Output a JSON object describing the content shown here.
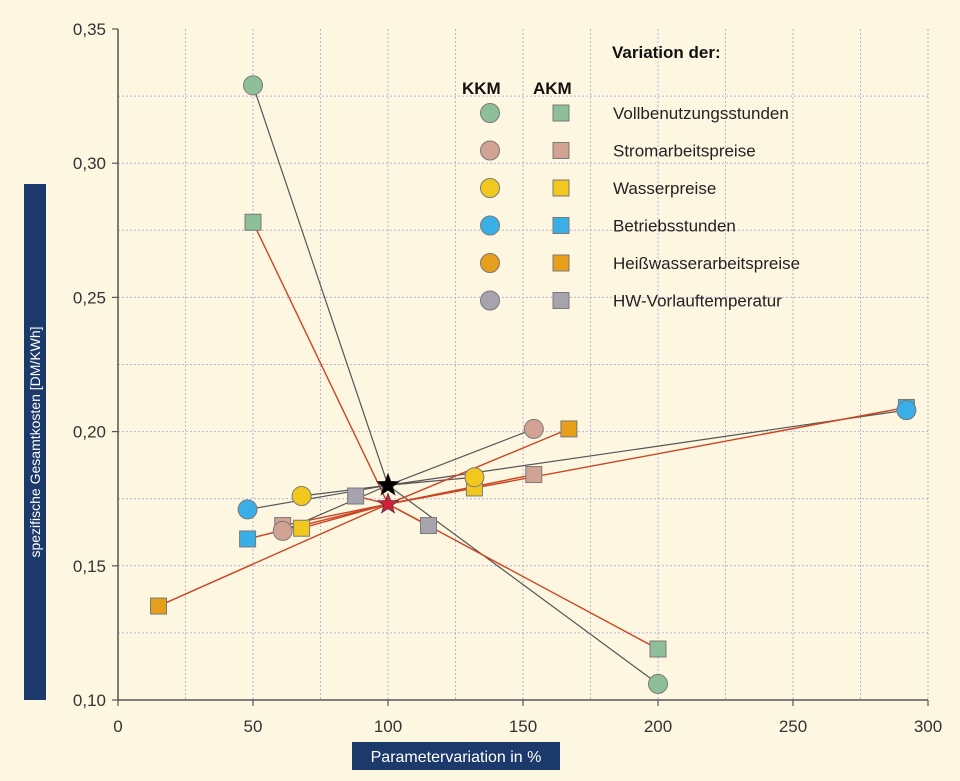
{
  "chart_data": {
    "type": "scatter",
    "title": "",
    "xlabel": "Parametervariation in %",
    "ylabel": "spezifische Gesamtkosten [DM/KWh]",
    "xlim": [
      0,
      300
    ],
    "ylim": [
      0.1,
      0.35
    ],
    "x_ticks": [
      0,
      50,
      100,
      150,
      200,
      250,
      300
    ],
    "x_tick_labels": [
      "0",
      "50",
      "100",
      "150",
      "200",
      "250",
      "300"
    ],
    "y_ticks": [
      0.1,
      0.15,
      0.2,
      0.25,
      0.3,
      0.35
    ],
    "y_tick_labels": [
      "0,10",
      "0,15",
      "0,20",
      "0,25",
      "0,30",
      "0,35"
    ],
    "grid": true,
    "legend": {
      "title": "Variation der:",
      "group_headers": [
        "KKM",
        "AKM"
      ],
      "placement": "top-right"
    },
    "reference_points": {
      "KKM": {
        "x": 100,
        "y": 0.18,
        "color": "#000000"
      },
      "AKM": {
        "x": 100,
        "y": 0.173,
        "color": "#d0203a"
      }
    },
    "series": [
      {
        "name": "Vollbenutzungsstunden",
        "color": "#8fbf98",
        "KKM": [
          {
            "x": 50,
            "y": 0.329
          },
          {
            "x": 200,
            "y": 0.106
          }
        ],
        "AKM": [
          {
            "x": 50,
            "y": 0.278
          },
          {
            "x": 200,
            "y": 0.119
          }
        ]
      },
      {
        "name": "Stromarbeitspreise",
        "color": "#d2a292",
        "KKM": [
          {
            "x": 61,
            "y": 0.163
          },
          {
            "x": 154,
            "y": 0.201
          }
        ],
        "AKM": [
          {
            "x": 61,
            "y": 0.165
          },
          {
            "x": 154,
            "y": 0.184
          }
        ]
      },
      {
        "name": "Wasserpreise",
        "color": "#f2c81f",
        "KKM": [
          {
            "x": 68,
            "y": 0.176
          },
          {
            "x": 132,
            "y": 0.183
          }
        ],
        "AKM": [
          {
            "x": 68,
            "y": 0.164
          },
          {
            "x": 132,
            "y": 0.179
          }
        ]
      },
      {
        "name": "Betriebsstunden",
        "color": "#3aaee6",
        "KKM": [
          {
            "x": 48,
            "y": 0.171
          },
          {
            "x": 292,
            "y": 0.208
          }
        ],
        "AKM": [
          {
            "x": 48,
            "y": 0.16
          },
          {
            "x": 292,
            "y": 0.209
          }
        ]
      },
      {
        "name": "Heißwasserarbeitspreise",
        "color": "#e59f1a",
        "KKM": [],
        "AKM": [
          {
            "x": 15,
            "y": 0.135
          },
          {
            "x": 167,
            "y": 0.201
          }
        ]
      },
      {
        "name": "HW-Vorlauftemperatur",
        "color": "#a6a2ae",
        "KKM": [],
        "AKM": [
          {
            "x": 88,
            "y": 0.176
          },
          {
            "x": 115,
            "y": 0.165
          }
        ]
      }
    ],
    "line_colors": {
      "KKM": "#555555",
      "AKM": "#cc4422"
    }
  },
  "colors": {
    "background": "#fdf7e2",
    "grid": "#b4b4d6",
    "axis_label_box": "#1b3a6b",
    "marker_outline": "#7a7a7a"
  }
}
